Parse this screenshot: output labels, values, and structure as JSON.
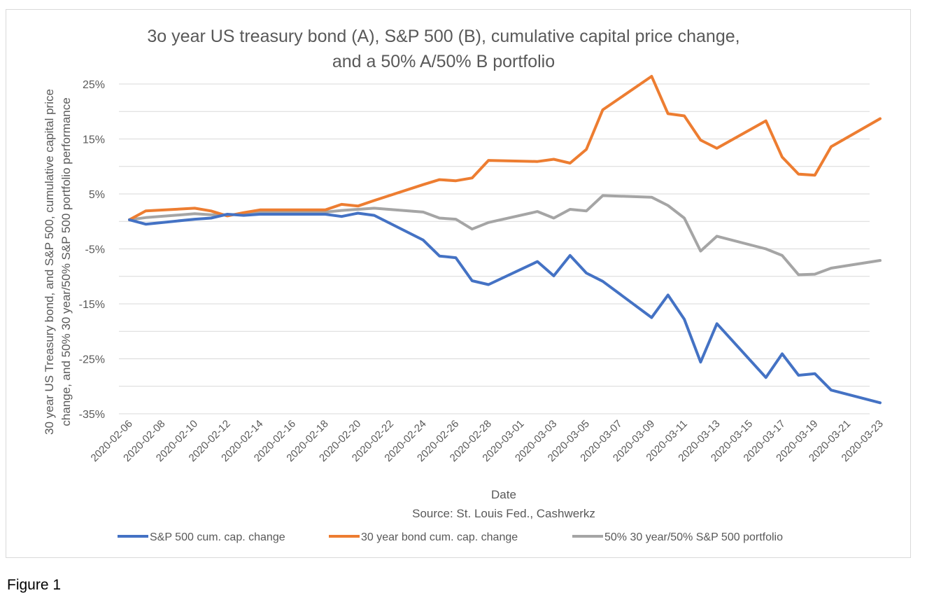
{
  "figure_caption": "Figure 1",
  "chart_data": {
    "type": "line",
    "title_line1": "3o year US treasury  bond (A),  S&P 500 (B), cumulative capital price change,",
    "title_line2": "and a 50% A/50% B portfolio",
    "xlabel": "Date",
    "source": "Source: St. Louis Fed., Cashwerkz",
    "ylabel_line1": "30 year US Treasury bond, and S&P 500, cumulative capital price",
    "ylabel_line2": "change, and 50% 30 year/50% S&P 500 portfolio performance",
    "ylim": [
      -35,
      25
    ],
    "y_ticks": [
      25,
      15,
      5,
      -5,
      -15,
      -25,
      -35
    ],
    "y_tick_labels": [
      "25%",
      "15%",
      "5%",
      "-5%",
      "-15%",
      "-25%",
      "-35%"
    ],
    "grid": true,
    "legend_position": "bottom",
    "x_tick_labels": [
      "2020-02-06",
      "2020-02-08",
      "2020-02-10",
      "2020-02-12",
      "2020-02-14",
      "2020-02-16",
      "2020-02-18",
      "2020-02-20",
      "2020-02-22",
      "2020-02-24",
      "2020-02-26",
      "2020-02-28",
      "2020-03-01",
      "2020-03-03",
      "2020-03-05",
      "2020-03-07",
      "2020-03-09",
      "2020-03-11",
      "2020-03-13",
      "2020-03-15",
      "2020-03-17",
      "2020-03-19",
      "2020-03-21",
      "2020-03-23"
    ],
    "x": [
      "2020-02-06",
      "2020-02-07",
      "2020-02-10",
      "2020-02-11",
      "2020-02-12",
      "2020-02-13",
      "2020-02-14",
      "2020-02-18",
      "2020-02-19",
      "2020-02-20",
      "2020-02-21",
      "2020-02-24",
      "2020-02-25",
      "2020-02-26",
      "2020-02-27",
      "2020-02-28",
      "2020-03-02",
      "2020-03-03",
      "2020-03-04",
      "2020-03-05",
      "2020-03-06",
      "2020-03-09",
      "2020-03-10",
      "2020-03-11",
      "2020-03-12",
      "2020-03-13",
      "2020-03-16",
      "2020-03-17",
      "2020-03-18",
      "2020-03-19",
      "2020-03-20",
      "2020-03-23"
    ],
    "series": [
      {
        "name": "S&P 500 cum. cap. change",
        "color": "#4472c4",
        "values": [
          0.3,
          -0.5,
          0.4,
          0.6,
          1.3,
          1.1,
          1.3,
          1.3,
          0.9,
          1.5,
          1.1,
          -3.4,
          -6.3,
          -6.6,
          -10.8,
          -11.5,
          -7.3,
          -9.9,
          -6.2,
          -9.4,
          -10.9,
          -17.5,
          -13.4,
          -17.8,
          -25.6,
          -18.6,
          -28.4,
          -24.1,
          -28.0,
          -27.7,
          -30.7,
          -33.0
        ]
      },
      {
        "name": "30 year bond cum. cap. change",
        "color": "#ed7d31",
        "values": [
          0.3,
          1.9,
          2.4,
          1.9,
          1.0,
          1.6,
          2.1,
          2.1,
          3.1,
          2.8,
          3.8,
          6.7,
          7.6,
          7.4,
          7.9,
          11.1,
          10.9,
          11.3,
          10.6,
          13.1,
          20.3,
          26.4,
          19.6,
          19.2,
          14.8,
          13.3,
          18.3,
          11.7,
          8.6,
          8.4,
          13.6,
          18.7
        ]
      },
      {
        "name": "50% 30 year/50% S&P 500 portfolio",
        "color": "#a5a5a5",
        "values": [
          0.3,
          0.7,
          1.4,
          1.2,
          1.2,
          1.3,
          1.7,
          1.7,
          2.0,
          2.2,
          2.4,
          1.7,
          0.6,
          0.4,
          -1.4,
          -0.2,
          1.8,
          0.6,
          2.2,
          1.9,
          4.7,
          4.4,
          2.9,
          0.6,
          -5.4,
          -2.7,
          -5.0,
          -6.2,
          -9.7,
          -9.6,
          -8.5,
          -7.1
        ]
      }
    ]
  }
}
